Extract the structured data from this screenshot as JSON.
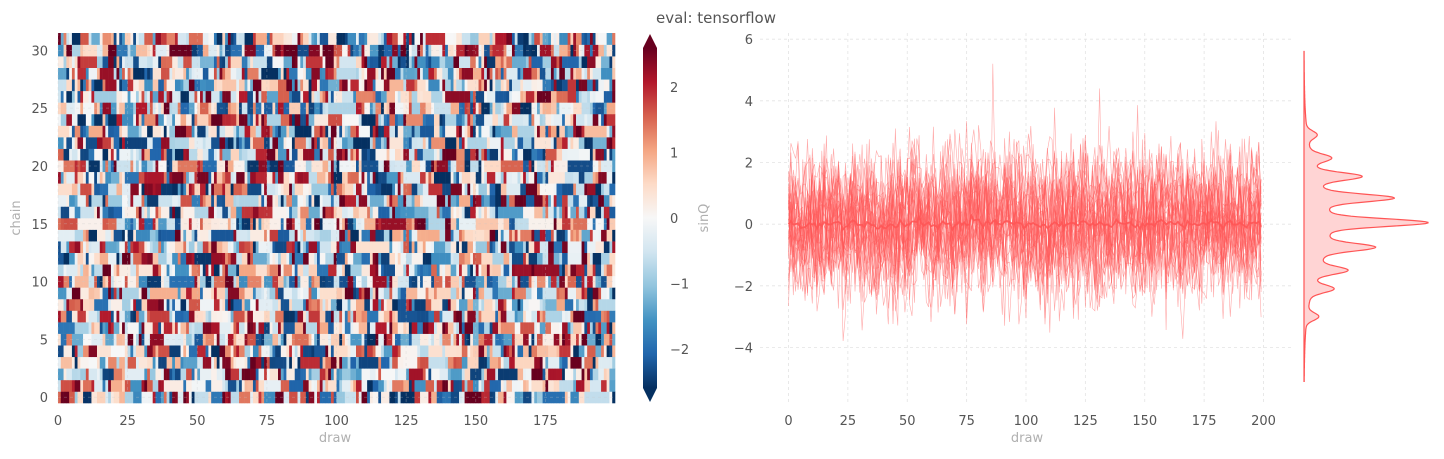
{
  "title": "eval: tensorflow",
  "colors": {
    "trace": "#ff5555",
    "grid": "#e3e3e3",
    "tick_text": "#555555",
    "axis_label": "#b0b0b0",
    "cmap": [
      "#67001f",
      "#b2182b",
      "#d6604d",
      "#f4a582",
      "#fddbc7",
      "#f7f7f7",
      "#d1e5f0",
      "#92c5de",
      "#4393c3",
      "#2166ac",
      "#053061"
    ]
  },
  "chart_data": [
    {
      "type": "heatmap",
      "xlabel": "draw",
      "ylabel": "chain",
      "xlim": [
        0,
        200
      ],
      "ylim": [
        0,
        32
      ],
      "n_draws": 200,
      "n_chains": 32,
      "xticks": [
        0,
        25,
        50,
        75,
        100,
        125,
        150,
        175
      ],
      "yticks": [
        0,
        5,
        10,
        15,
        20,
        25,
        30
      ],
      "colorbar": {
        "label": "sinQ",
        "vmin": -2.6,
        "vmax": 2.6,
        "ticks": [
          -2,
          -1,
          0,
          1,
          2
        ],
        "extend": "both"
      },
      "grid": true
    },
    {
      "type": "line",
      "xlabel": "draw",
      "ylabel": "",
      "xlim": [
        -12,
        212
      ],
      "ylim": [
        -5.8,
        6.2
      ],
      "xticks": [
        0,
        25,
        50,
        75,
        100,
        125,
        150,
        175,
        200
      ],
      "yticks": [
        -4,
        -2,
        0,
        2,
        4,
        6
      ],
      "n_chains": 32,
      "draw_range": [
        0,
        199
      ],
      "mean_level": 0.0,
      "typical_spread": [
        -2.5,
        2.5
      ],
      "extremes": {
        "max": 5.2,
        "min": -4.2
      },
      "grid": true,
      "marginal": {
        "type": "kde",
        "orientation": "vertical",
        "peaks": [
          -3.0,
          -2.1,
          -1.5,
          -0.75,
          0.05,
          0.85,
          1.55,
          2.15,
          2.9
        ],
        "range": [
          -5.1,
          5.6
        ]
      }
    }
  ]
}
